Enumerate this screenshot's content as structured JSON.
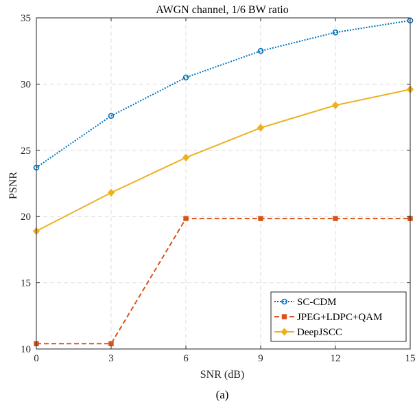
{
  "chart_data": {
    "type": "line",
    "title": "AWGN channel, 1/6 BW ratio",
    "xlabel": "SNR (dB)",
    "ylabel": "PSNR",
    "caption": "(a)",
    "x": [
      0,
      3,
      6,
      9,
      12,
      15
    ],
    "xlim": [
      0,
      15
    ],
    "ylim": [
      10,
      35
    ],
    "xticks": [
      0,
      3,
      6,
      9,
      12,
      15
    ],
    "yticks": [
      10,
      15,
      20,
      25,
      30,
      35
    ],
    "grid": true,
    "legend_position": "bottom-right",
    "series": [
      {
        "name": "SC-CDM",
        "values": [
          23.7,
          27.6,
          30.5,
          32.5,
          33.9,
          34.8
        ],
        "color": "#0072BD",
        "line_style": "dotted",
        "marker": "circle"
      },
      {
        "name": "JPEG+LDPC+QAM",
        "values": [
          10.4,
          10.4,
          19.85,
          19.85,
          19.85,
          19.85
        ],
        "color": "#D95319",
        "line_style": "dashed",
        "marker": "square"
      },
      {
        "name": "DeepJSCC",
        "values": [
          18.9,
          21.8,
          24.45,
          26.7,
          28.4,
          29.6
        ],
        "color": "#EDB120",
        "line_style": "solid",
        "marker": "diamond"
      }
    ]
  }
}
